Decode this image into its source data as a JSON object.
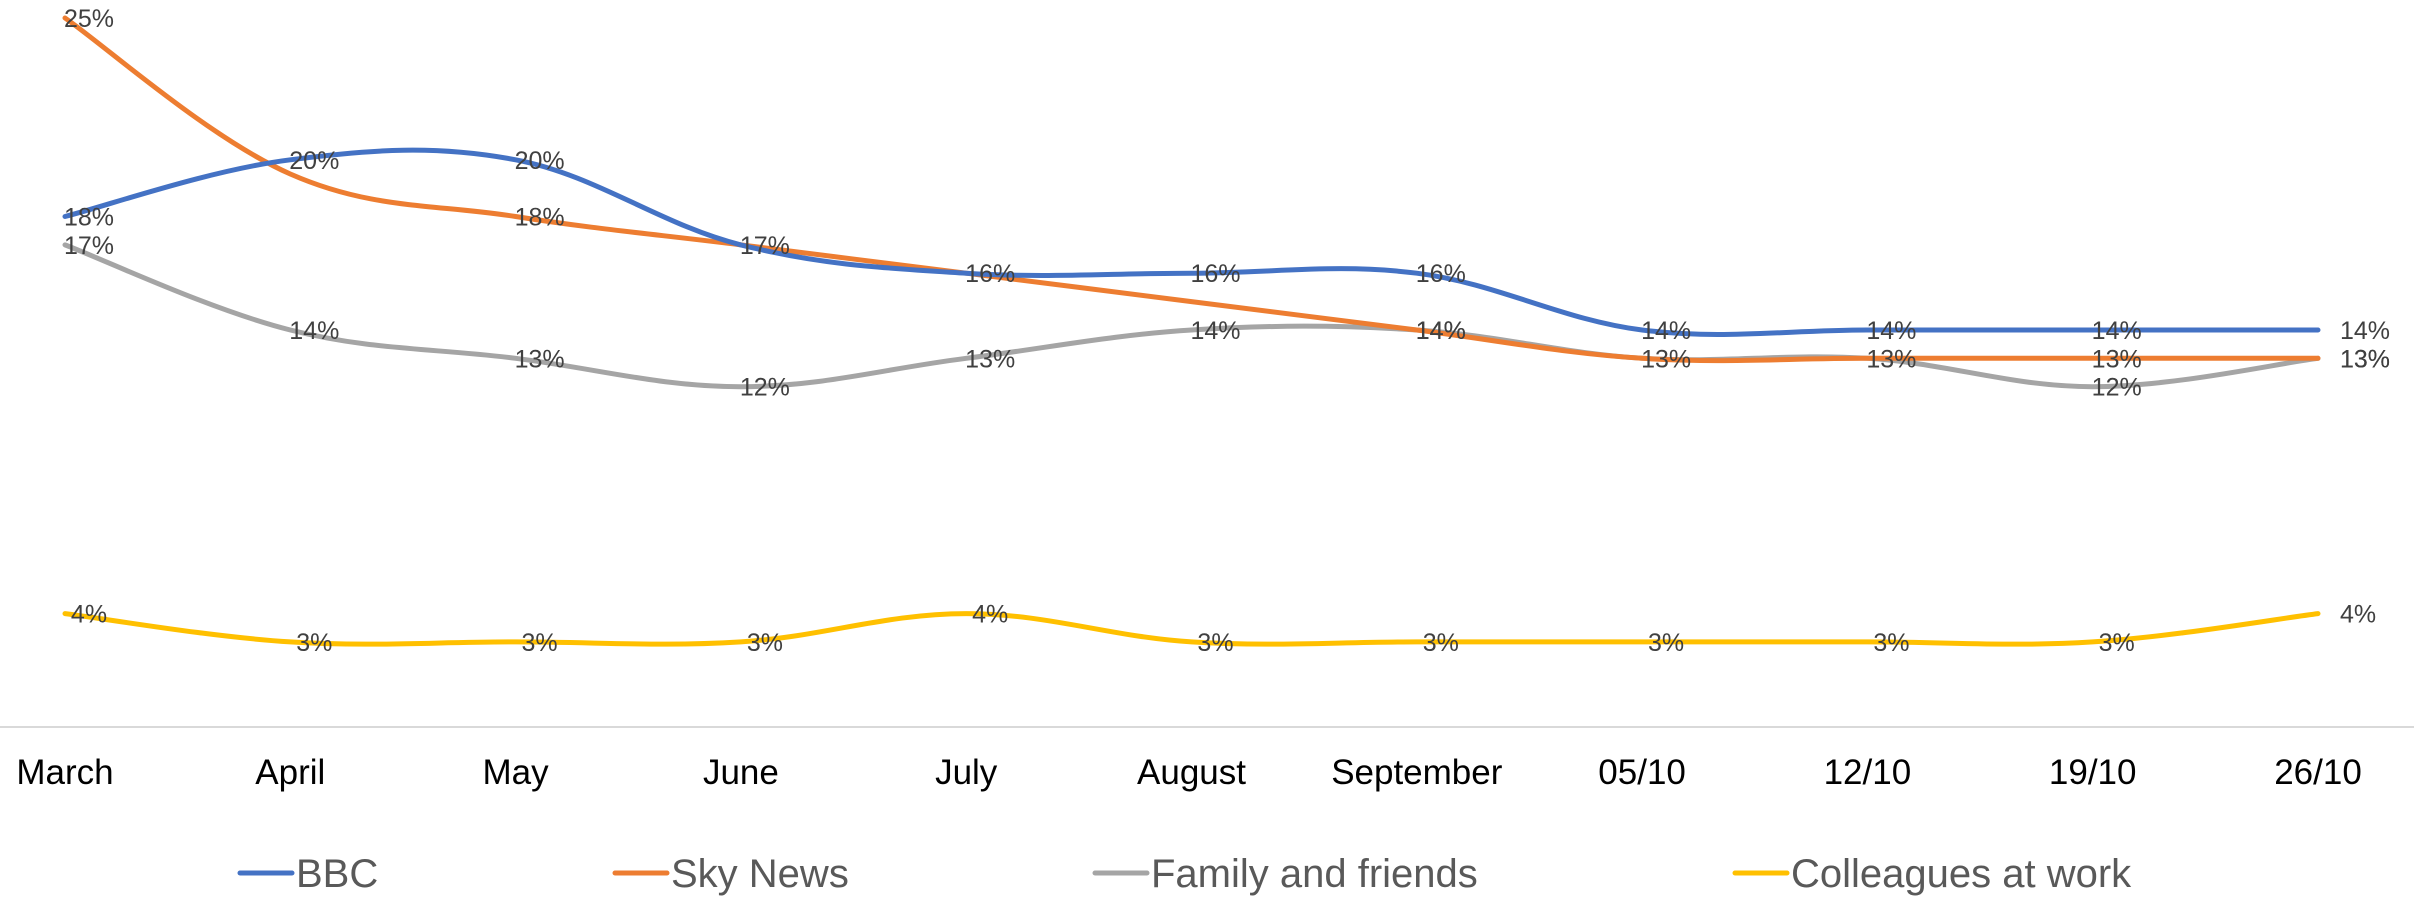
{
  "chart_data": {
    "type": "line",
    "categories": [
      "March",
      "April",
      "May",
      "June",
      "July",
      "August",
      "September",
      "05/10",
      "12/10",
      "19/10",
      "26/10"
    ],
    "series": [
      {
        "name": "BBC",
        "color": "#4472C4",
        "values": [
          18,
          20,
          20,
          17,
          16,
          16,
          16,
          14,
          14,
          14,
          14
        ],
        "labels": [
          "18%",
          "20%",
          "20%",
          "",
          "16%",
          "16%",
          "16%",
          "14%",
          "14%",
          "14%",
          "14%"
        ]
      },
      {
        "name": "Sky News",
        "color": "#ED7D31",
        "values": [
          25,
          19.5,
          18,
          17,
          16,
          15,
          14,
          13,
          13,
          13,
          13
        ],
        "labels": [
          "25%",
          "",
          "18%",
          "17%",
          "",
          "",
          "14%",
          "",
          "",
          "13%",
          "13%"
        ]
      },
      {
        "name": "Family and friends",
        "color": "#A5A5A5",
        "values": [
          17,
          14,
          13,
          12,
          13,
          14,
          14,
          13,
          13,
          12,
          13
        ],
        "labels": [
          "17%",
          "14%",
          "13%",
          "12%",
          "13%",
          "14%",
          "14%",
          "13%",
          "13%",
          "12%",
          "13%"
        ]
      },
      {
        "name": "Colleagues at work",
        "color": "#FFC000",
        "values": [
          4,
          3,
          3,
          3,
          4,
          3,
          3,
          3,
          3,
          3,
          4
        ],
        "labels": [
          "4%",
          "3%",
          "3%",
          "3%",
          "4%",
          "3%",
          "3%",
          "3%",
          "3%",
          "3%",
          "4%"
        ]
      }
    ],
    "xlabel": "",
    "ylabel": "",
    "ylim": [
      0,
      25
    ],
    "grid": false,
    "legend_position": "bottom"
  }
}
